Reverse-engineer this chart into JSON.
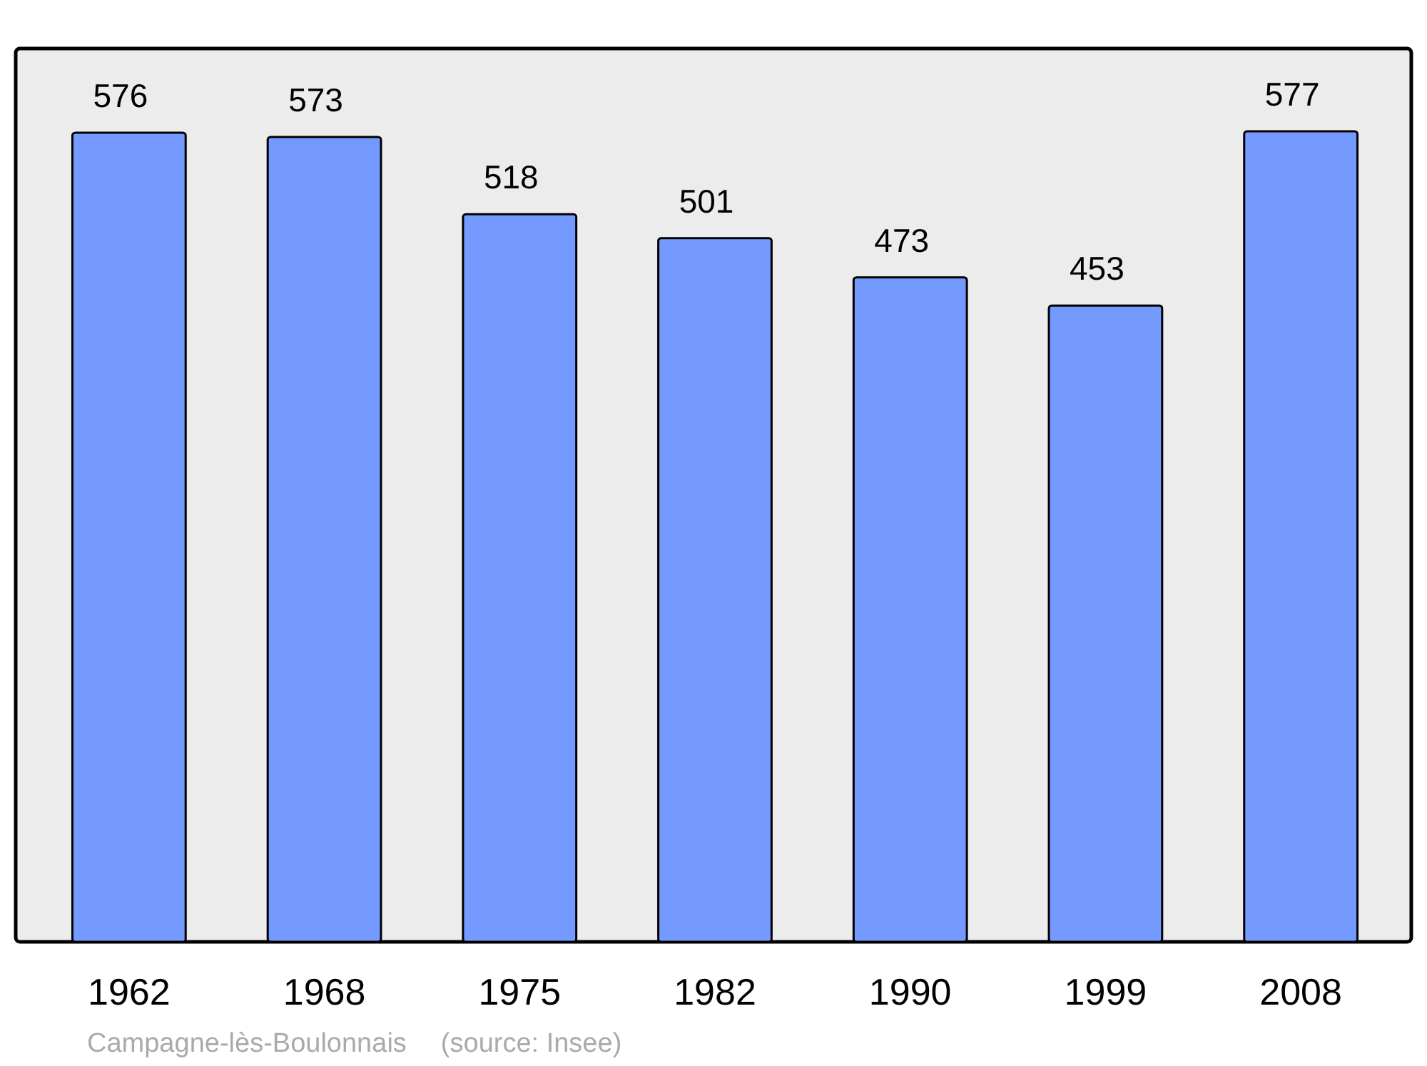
{
  "chart_data": {
    "type": "bar",
    "categories": [
      "1962",
      "1968",
      "1975",
      "1982",
      "1990",
      "1999",
      "2008"
    ],
    "values": [
      576,
      573,
      518,
      501,
      473,
      453,
      577
    ],
    "color": "#7499ff",
    "data_labels": true,
    "annotations": [
      "Campagne-lès-Boulonnais",
      "(source: Insee)"
    ]
  }
}
